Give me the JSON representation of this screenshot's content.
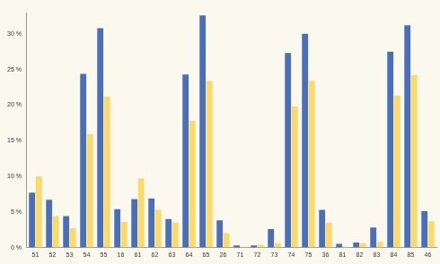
{
  "chart_data": {
    "type": "bar",
    "categories": [
      "51",
      "52",
      "53",
      "54",
      "55",
      "16",
      "61",
      "62",
      "63",
      "64",
      "65",
      "26",
      "71",
      "72",
      "73",
      "74",
      "75",
      "36",
      "81",
      "82",
      "83",
      "84",
      "85",
      "46"
    ],
    "series": [
      {
        "color": "#4a6fb8",
        "values": [
          7.7,
          6.7,
          4.4,
          24.4,
          30.8,
          5.4,
          6.8,
          6.9,
          4.0,
          24.3,
          32.6,
          3.8,
          0.3,
          0.3,
          2.6,
          27.3,
          30.0,
          5.3,
          0.5,
          0.7,
          2.8,
          27.5,
          31.2,
          5.1
        ]
      },
      {
        "color": "#fbd96b",
        "values": [
          10.0,
          4.4,
          2.7,
          15.9,
          21.2,
          3.6,
          9.7,
          5.3,
          3.5,
          17.8,
          23.4,
          2.0,
          0.1,
          0.4,
          0.6,
          19.8,
          23.4,
          3.5,
          0.1,
          0.6,
          0.8,
          21.3,
          24.2,
          3.7
        ]
      }
    ],
    "ylim": [
      0,
      33
    ],
    "yticks": [
      {
        "value": 0,
        "label": "0 %"
      },
      {
        "value": 5,
        "label": "5 %"
      },
      {
        "value": 10,
        "label": "10 %"
      },
      {
        "value": 15,
        "label": "15 %"
      },
      {
        "value": 20,
        "label": "20 %"
      },
      {
        "value": 25,
        "label": "25 %"
      },
      {
        "value": 30,
        "label": "30 %"
      }
    ],
    "grid": false
  }
}
